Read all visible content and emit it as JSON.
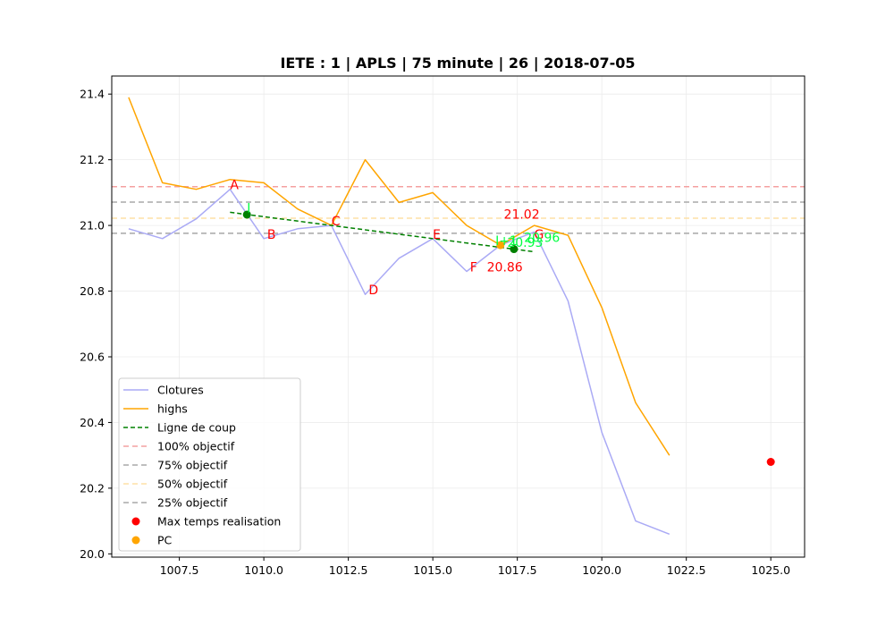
{
  "chart_data": {
    "type": "line",
    "title": "IETE : 1 | APLS | 75 minute | 26 | 2018-07-05",
    "xlabel": "",
    "ylabel": "",
    "xlim": [
      1005.5,
      1026.0
    ],
    "ylim": [
      19.99,
      21.455
    ],
    "xticks": [
      1007.5,
      1010.0,
      1012.5,
      1015.0,
      1017.5,
      1020.0,
      1022.5,
      1025.0
    ],
    "xtick_labels": [
      "1007.5",
      "1010.0",
      "1012.5",
      "1015.0",
      "1017.5",
      "1020.0",
      "1022.5",
      "1025.0"
    ],
    "yticks": [
      20.0,
      20.2,
      20.4,
      20.6,
      20.8,
      21.0,
      21.2,
      21.4
    ],
    "ytick_labels": [
      "20.0",
      "20.2",
      "20.4",
      "20.6",
      "20.8",
      "21.0",
      "21.2",
      "21.4"
    ],
    "grid": true,
    "legend_position": "lower-left",
    "series": [
      {
        "name": "Clotures",
        "kind": "line",
        "color": "#aaaaf5",
        "x": [
          1006,
          1007,
          1008,
          1009,
          1010,
          1011,
          1012,
          1013,
          1014,
          1015,
          1016,
          1017,
          1018,
          1019,
          1020,
          1021,
          1022
        ],
        "y": [
          20.99,
          20.96,
          21.02,
          21.11,
          20.96,
          20.99,
          21.0,
          20.79,
          20.9,
          20.96,
          20.86,
          20.94,
          20.98,
          20.77,
          20.37,
          20.1,
          20.06
        ]
      },
      {
        "name": "highs",
        "kind": "line",
        "color": "#ffa500",
        "x": [
          1006,
          1007,
          1008,
          1009,
          1010,
          1011,
          1012,
          1013,
          1014,
          1015,
          1016,
          1017,
          1018,
          1019,
          1020,
          1021,
          1022
        ],
        "y": [
          21.39,
          21.13,
          21.11,
          21.14,
          21.13,
          21.05,
          21.0,
          21.2,
          21.07,
          21.1,
          21.0,
          20.94,
          21.0,
          20.97,
          20.75,
          20.46,
          20.3
        ]
      },
      {
        "name": "Ligne de coup",
        "kind": "dashed-line",
        "color": "#008000",
        "x": [
          1009,
          1018
        ],
        "y": [
          21.04,
          20.92
        ]
      },
      {
        "name": "100% objectif",
        "kind": "hline",
        "color": "#f4a0a0",
        "y": 21.118
      },
      {
        "name": "75% objectif",
        "kind": "hline",
        "color": "#a8a8a8",
        "y": 21.071
      },
      {
        "name": "50% objectif",
        "kind": "hline",
        "color": "#fde0a6",
        "y": 21.022
      },
      {
        "name": "25% objectif",
        "kind": "hline",
        "color": "#a8a8a8",
        "y": 20.976
      },
      {
        "name": "Max temps realisation",
        "kind": "scatter",
        "color": "#ff0000",
        "x": [
          1025.0
        ],
        "y": [
          20.28
        ]
      },
      {
        "name": "PC",
        "kind": "scatter",
        "color": "#ffa500",
        "x": [
          1017.0
        ],
        "y": [
          20.94
        ]
      }
    ],
    "green_points": [
      {
        "x": 1009.5,
        "y": 21.033
      },
      {
        "x": 1017.4,
        "y": 20.928
      }
    ],
    "annotations": [
      {
        "text": "A",
        "x": 1009.0,
        "y": 21.11,
        "color": "#ff0000"
      },
      {
        "text": "B",
        "x": 1010.1,
        "y": 20.96,
        "color": "#ff0000"
      },
      {
        "text": "C",
        "x": 1012.0,
        "y": 21.0,
        "color": "#ff0000"
      },
      {
        "text": "D",
        "x": 1013.1,
        "y": 20.79,
        "color": "#ff0000"
      },
      {
        "text": "E",
        "x": 1015.0,
        "y": 20.96,
        "color": "#ff0000"
      },
      {
        "text": "F",
        "x": 1016.1,
        "y": 20.86,
        "color": "#ff0000"
      },
      {
        "text": "G",
        "x": 1018.0,
        "y": 20.96,
        "color": "#ff0000"
      },
      {
        "text": "21.02",
        "x": 1017.1,
        "y": 21.02,
        "color": "#ff0000"
      },
      {
        "text": "20.86",
        "x": 1016.6,
        "y": 20.86,
        "color": "#ff0000"
      },
      {
        "text": "I",
        "x": 1009.5,
        "y": 21.04,
        "color": "#00ff40"
      },
      {
        "text": "I+1",
        "x": 1016.85,
        "y": 20.94,
        "color": "#00ff40"
      },
      {
        "text": "20.96",
        "x": 1017.7,
        "y": 20.95,
        "color": "#00ff40"
      },
      {
        "text": "20.93",
        "x": 1017.2,
        "y": 20.935,
        "color": "#00ff40"
      }
    ]
  }
}
